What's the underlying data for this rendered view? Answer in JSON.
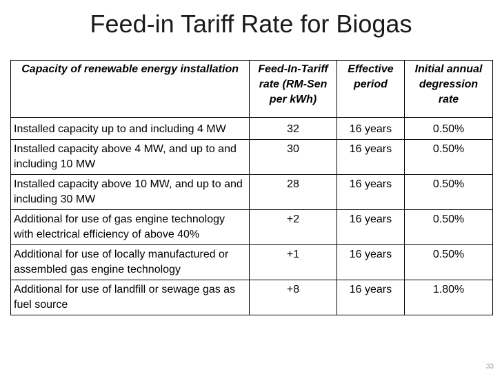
{
  "slide": {
    "title": "Feed-in Tariff Rate for Biogas",
    "number": "33"
  },
  "table": {
    "headers": [
      "Capacity of renewable energy installation",
      "Feed-In-Tariff rate (RM-Sen per kWh)",
      "Effective period",
      "Initial annual degression rate"
    ],
    "rows": [
      {
        "capacity": "Installed capacity up to and including 4 MW",
        "rate": "32",
        "period": "16 years",
        "degression": "0.50%"
      },
      {
        "capacity": "Installed capacity above 4 MW, and up to and including 10 MW",
        "rate": "30",
        "period": "16 years",
        "degression": "0.50%"
      },
      {
        "capacity": "Installed capacity above 10 MW, and up to and including 30 MW",
        "rate": "28",
        "period": "16 years",
        "degression": "0.50%"
      },
      {
        "capacity": "Additional for use of gas engine technology with electrical efficiency of above 40%",
        "rate": "+2",
        "period": "16 years",
        "degression": "0.50%"
      },
      {
        "capacity": "Additional for use of locally manufactured or assembled gas engine technology",
        "rate": "+1",
        "period": "16 years",
        "degression": "0.50%"
      },
      {
        "capacity": "Additional for use of landfill or sewage gas as fuel source",
        "rate": "+8",
        "period": "16 years",
        "degression": "1.80%"
      }
    ]
  }
}
